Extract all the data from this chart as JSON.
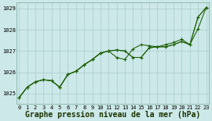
{
  "xlabel": "Graphe pression niveau de la mer (hPa)",
  "ylabel": "",
  "bg_color": "#cce8e8",
  "grid_color": "#aacccc",
  "line_color": "#1a5c00",
  "marker_color": "#1a5c00",
  "x": [
    0,
    1,
    2,
    3,
    4,
    5,
    6,
    7,
    8,
    9,
    10,
    11,
    12,
    13,
    14,
    15,
    16,
    17,
    18,
    19,
    20,
    21,
    22,
    23
  ],
  "series1": [
    1024.8,
    1025.3,
    1025.55,
    1025.65,
    1025.6,
    1025.3,
    1025.9,
    1026.05,
    1026.35,
    1026.6,
    1026.9,
    1027.0,
    1026.7,
    1026.6,
    1027.1,
    1027.3,
    1027.25,
    1027.2,
    1027.3,
    1027.4,
    1027.55,
    1027.3,
    1028.05,
    1029.05
  ],
  "series2": [
    1024.8,
    1025.3,
    1025.55,
    1025.65,
    1025.6,
    1025.3,
    1025.9,
    1026.05,
    1026.35,
    1026.6,
    1026.9,
    1027.0,
    1027.05,
    1027.0,
    1026.7,
    1026.7,
    1027.15,
    1027.2,
    1027.2,
    1027.3,
    1027.45,
    1027.3,
    1028.6,
    1029.05
  ],
  "series3": [
    1024.8,
    1025.3,
    1025.55,
    1025.65,
    1025.6,
    1025.3,
    1025.9,
    1026.05,
    1026.35,
    1026.6,
    1026.9,
    1027.0,
    1027.05,
    1027.0,
    1026.7,
    1026.7,
    1027.15,
    1027.2,
    1027.2,
    1027.3,
    1027.45,
    1027.3,
    1028.6,
    1029.05
  ],
  "ylim": [
    1024.5,
    1029.3
  ],
  "xlim": [
    -0.3,
    23.3
  ],
  "yticks": [
    1025,
    1026,
    1027,
    1028,
    1029
  ],
  "xticks": [
    0,
    1,
    2,
    3,
    4,
    5,
    6,
    7,
    8,
    9,
    10,
    11,
    12,
    13,
    14,
    15,
    16,
    17,
    18,
    19,
    20,
    21,
    22,
    23
  ],
  "tick_fontsize": 5.0,
  "xlabel_fontsize": 7.0,
  "marker": "+",
  "markersize": 2.5,
  "linewidth": 0.75
}
